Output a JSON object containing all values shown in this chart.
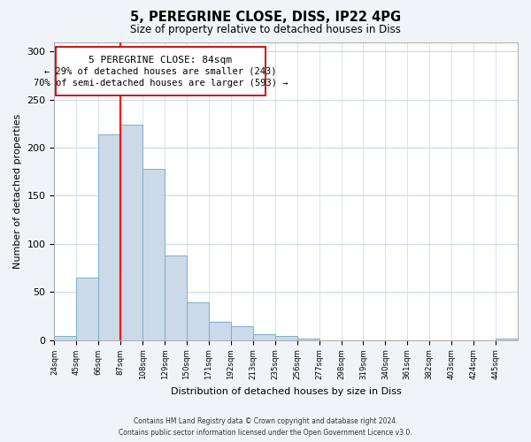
{
  "title": "5, PEREGRINE CLOSE, DISS, IP22 4PG",
  "subtitle": "Size of property relative to detached houses in Diss",
  "xlabel": "Distribution of detached houses by size in Diss",
  "ylabel": "Number of detached properties",
  "bin_labels": [
    "24sqm",
    "45sqm",
    "66sqm",
    "87sqm",
    "108sqm",
    "129sqm",
    "150sqm",
    "171sqm",
    "192sqm",
    "213sqm",
    "235sqm",
    "256sqm",
    "277sqm",
    "298sqm",
    "319sqm",
    "340sqm",
    "361sqm",
    "382sqm",
    "403sqm",
    "424sqm",
    "445sqm"
  ],
  "bar_values": [
    4,
    65,
    214,
    224,
    178,
    88,
    39,
    19,
    14,
    6,
    4,
    1,
    0,
    0,
    0,
    0,
    0,
    0,
    0,
    0,
    1
  ],
  "bar_color": "#ccd9e8",
  "bar_edge_color": "#7ab0cc",
  "vline_x": 3,
  "vline_color": "red",
  "annotation_title": "5 PEREGRINE CLOSE: 84sqm",
  "annotation_line1": "← 29% of detached houses are smaller (243)",
  "annotation_line2": "70% of semi-detached houses are larger (593) →",
  "annotation_box_color": "white",
  "annotation_box_edge": "#cc0000",
  "ylim": [
    0,
    310
  ],
  "yticks": [
    0,
    50,
    100,
    150,
    200,
    250,
    300
  ],
  "footer1": "Contains HM Land Registry data © Crown copyright and database right 2024.",
  "footer2": "Contains public sector information licensed under the Open Government Licence v3.0.",
  "background_color": "#f0f4f8",
  "plot_background": "white",
  "grid_color": "#c8d8e8"
}
